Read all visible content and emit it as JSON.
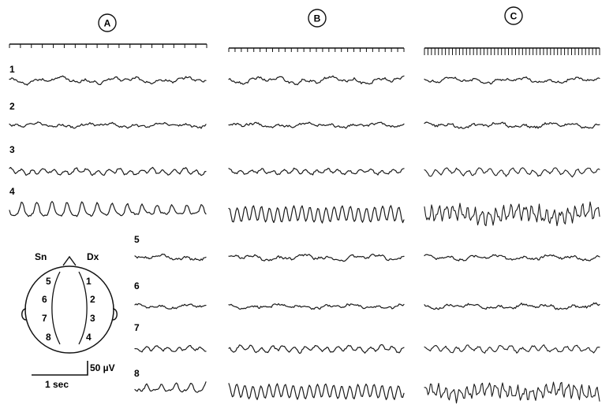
{
  "panels": [
    {
      "label": "A",
      "tick_count": 18
    },
    {
      "label": "B",
      "tick_count": 28
    },
    {
      "label": "C",
      "tick_count": 50
    }
  ],
  "channels": [
    {
      "label": "1",
      "shape": "low",
      "amp": [
        6,
        7,
        5
      ]
    },
    {
      "label": "2",
      "shape": "low",
      "amp": [
        4,
        4,
        5
      ]
    },
    {
      "label": "3",
      "shape": "medium",
      "amp": [
        5,
        4,
        6
      ]
    },
    {
      "label": "4",
      "shape": "high",
      "amp": [
        10,
        11,
        13
      ]
    },
    {
      "label": "5",
      "shape": "low",
      "amp": [
        5,
        6,
        5
      ]
    },
    {
      "label": "6",
      "shape": "low",
      "amp": [
        4,
        4,
        5
      ]
    },
    {
      "label": "7",
      "shape": "medium",
      "amp": [
        4,
        5,
        5
      ]
    },
    {
      "label": "8",
      "shape": "high",
      "amp": [
        8,
        10,
        11
      ]
    }
  ],
  "head_diagram": {
    "left_label": "Sn",
    "right_label": "Dx",
    "left_electrodes": [
      "5",
      "6",
      "7",
      "8"
    ],
    "right_electrodes": [
      "1",
      "2",
      "3",
      "4"
    ]
  },
  "scale_bar": {
    "voltage_label": "50 µV",
    "time_label": "1 sec"
  }
}
